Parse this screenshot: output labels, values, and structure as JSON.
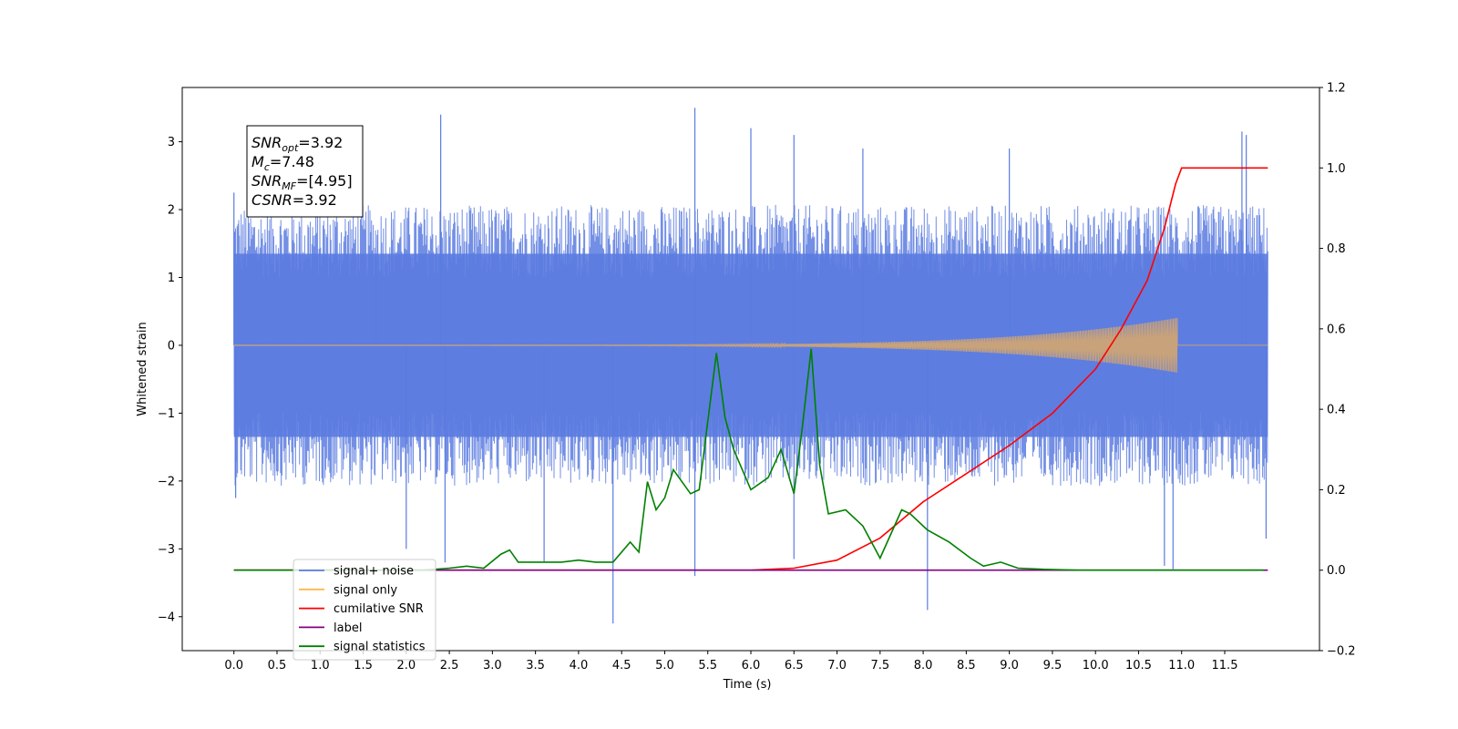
{
  "chart_data": {
    "type": "line",
    "title": "",
    "xlabel": "Time (s)",
    "ylabel": "Whitened strain",
    "xlim": [
      -0.6,
      12.6
    ],
    "ylim": [
      -4.5,
      3.8
    ],
    "y2lim": [
      -0.2,
      1.2
    ],
    "grid": false,
    "legend_position": "lower-left",
    "x_ticks": [
      0.0,
      0.5,
      1.0,
      1.5,
      2.0,
      2.5,
      3.0,
      3.5,
      4.0,
      4.5,
      5.0,
      5.5,
      6.0,
      6.5,
      7.0,
      7.5,
      8.0,
      8.5,
      9.0,
      9.5,
      10.0,
      10.5,
      11.0,
      11.5
    ],
    "x_tick_labels": [
      "0.0",
      "0.5",
      "1.0",
      "1.5",
      "2.0",
      "2.5",
      "3.0",
      "3.5",
      "4.0",
      "4.5",
      "5.0",
      "5.5",
      "6.0",
      "6.5",
      "7.0",
      "7.5",
      "8.0",
      "8.5",
      "9.0",
      "9.5",
      "10.0",
      "10.5",
      "11.0",
      "11.5"
    ],
    "y_ticks": [
      -4,
      -3,
      -2,
      -1,
      0,
      1,
      2,
      3
    ],
    "y_tick_labels": [
      "−4",
      "−3",
      "−2",
      "−1",
      "0",
      "1",
      "2",
      "3"
    ],
    "y2_ticks": [
      -0.2,
      0.0,
      0.2,
      0.4,
      0.6,
      0.8,
      1.0,
      1.2
    ],
    "y2_tick_labels": [
      "−0.2",
      "0.0",
      "0.2",
      "0.4",
      "0.6",
      "0.8",
      "1.0",
      "1.2"
    ],
    "annotation": {
      "lines": [
        {
          "sym": "SNR",
          "sub": "opt",
          "text": "=3.92"
        },
        {
          "sym": "M",
          "sub": "c",
          "text": "=7.48"
        },
        {
          "sym": "SNR",
          "sub": "MF",
          "text": "=[4.95]"
        },
        {
          "sym": "CSNR",
          "sub": "",
          "text": "=3.92"
        }
      ]
    },
    "legend": [
      {
        "label": "signal+ noise",
        "color": "#5b7be0"
      },
      {
        "label": "signal only",
        "color": "#ffb74d"
      },
      {
        "label": "cumilative SNR",
        "color": "#ff0000"
      },
      {
        "label": "label",
        "color": "#800080"
      },
      {
        "label": "signal statistics",
        "color": "#008000"
      }
    ],
    "series": [
      {
        "name": "signal+ noise",
        "axis": "left",
        "color": "#5b7be0",
        "x_range": [
          0.0,
          12.0
        ],
        "envelope_upper": 1.8,
        "envelope_lower": -1.8,
        "spikes": [
          [
            0.0,
            2.25
          ],
          [
            0.02,
            -2.25
          ],
          [
            1.65,
            1.35
          ],
          [
            2.0,
            -3.0
          ],
          [
            2.4,
            3.4
          ],
          [
            2.45,
            -3.2
          ],
          [
            3.6,
            -3.2
          ],
          [
            4.4,
            -4.1
          ],
          [
            5.35,
            3.5
          ],
          [
            5.35,
            -3.4
          ],
          [
            6.0,
            3.2
          ],
          [
            6.5,
            3.1
          ],
          [
            6.5,
            -3.15
          ],
          [
            7.3,
            2.9
          ],
          [
            8.05,
            -3.9
          ],
          [
            9.0,
            2.9
          ],
          [
            10.8,
            -3.25
          ],
          [
            10.9,
            -3.3
          ],
          [
            11.7,
            3.15
          ],
          [
            11.75,
            3.1
          ],
          [
            11.98,
            -2.85
          ]
        ]
      },
      {
        "name": "signal only",
        "axis": "left",
        "color": "#c8a27a",
        "x_range": [
          0.0,
          10.95
        ],
        "chirp_amplitude_end": 0.4
      },
      {
        "name": "cumilative SNR",
        "axis": "right",
        "color": "#ff0000",
        "x": [
          0.0,
          6.0,
          6.5,
          7.0,
          7.5,
          8.0,
          8.5,
          9.0,
          9.5,
          10.0,
          10.3,
          10.6,
          10.8,
          10.93,
          11.0,
          12.0
        ],
        "y": [
          0.0,
          0.0,
          0.005,
          0.025,
          0.08,
          0.17,
          0.24,
          0.31,
          0.39,
          0.5,
          0.6,
          0.72,
          0.85,
          0.96,
          1.0,
          1.0
        ]
      },
      {
        "name": "label",
        "axis": "right",
        "color": "#800080",
        "x": [
          0.0,
          12.0
        ],
        "y": [
          0.0,
          0.0
        ]
      },
      {
        "name": "signal statistics",
        "axis": "right",
        "color": "#008000",
        "x": [
          0.0,
          2.2,
          2.5,
          2.7,
          2.9,
          3.1,
          3.2,
          3.3,
          3.5,
          3.8,
          4.0,
          4.2,
          4.4,
          4.6,
          4.7,
          4.8,
          4.9,
          5.0,
          5.1,
          5.3,
          5.4,
          5.6,
          5.7,
          5.8,
          6.0,
          6.2,
          6.35,
          6.5,
          6.6,
          6.7,
          6.8,
          6.9,
          7.1,
          7.3,
          7.5,
          7.75,
          7.85,
          8.05,
          8.3,
          8.55,
          8.7,
          8.9,
          9.1,
          9.4,
          9.8,
          10.5,
          11.0,
          11.5,
          11.95
        ],
        "y": [
          0.0,
          0.0,
          0.005,
          0.01,
          0.005,
          0.04,
          0.05,
          0.02,
          0.02,
          0.02,
          0.025,
          0.02,
          0.02,
          0.07,
          0.045,
          0.22,
          0.15,
          0.18,
          0.25,
          0.19,
          0.2,
          0.54,
          0.38,
          0.3,
          0.2,
          0.23,
          0.3,
          0.19,
          0.36,
          0.55,
          0.26,
          0.14,
          0.15,
          0.11,
          0.03,
          0.15,
          0.14,
          0.1,
          0.07,
          0.03,
          0.01,
          0.02,
          0.005,
          0.002,
          0.0,
          0.0,
          0.0,
          0.0,
          0.0
        ]
      }
    ]
  }
}
